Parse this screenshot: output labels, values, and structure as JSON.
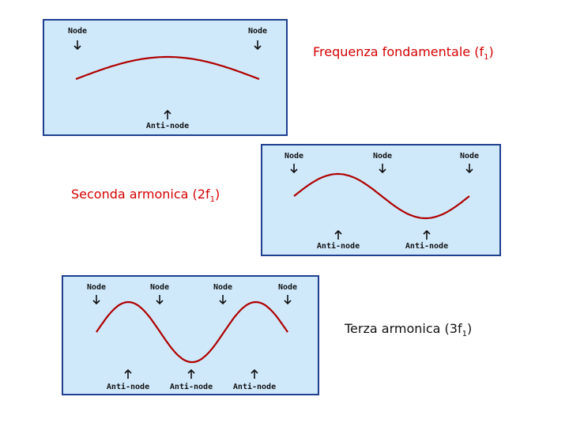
{
  "labels": {
    "node": "Node",
    "antinode": "Anti-node"
  },
  "captions": {
    "fundamental": {
      "text": "Frequenza fondamentale (f",
      "sub": "1",
      "tail": ")"
    },
    "second": {
      "text": "Seconda armonica (2f",
      "sub": "1",
      "tail": ")"
    },
    "third": {
      "text": "Terza armonica (3f",
      "sub": "1",
      "tail": ")"
    }
  },
  "colors": {
    "panel_fill": "#cfe9fb",
    "panel_border": "#1f3f8f",
    "wave": "#b00000",
    "caption_red": "#d40000",
    "caption_dark": "#111111"
  },
  "panels": [
    {
      "id": "fundamental",
      "harmonic": 1,
      "nodes": 2,
      "antinodes": 1
    },
    {
      "id": "second",
      "harmonic": 2,
      "nodes": 3,
      "antinodes": 2
    },
    {
      "id": "third",
      "harmonic": 3,
      "nodes": 4,
      "antinodes": 3
    }
  ]
}
